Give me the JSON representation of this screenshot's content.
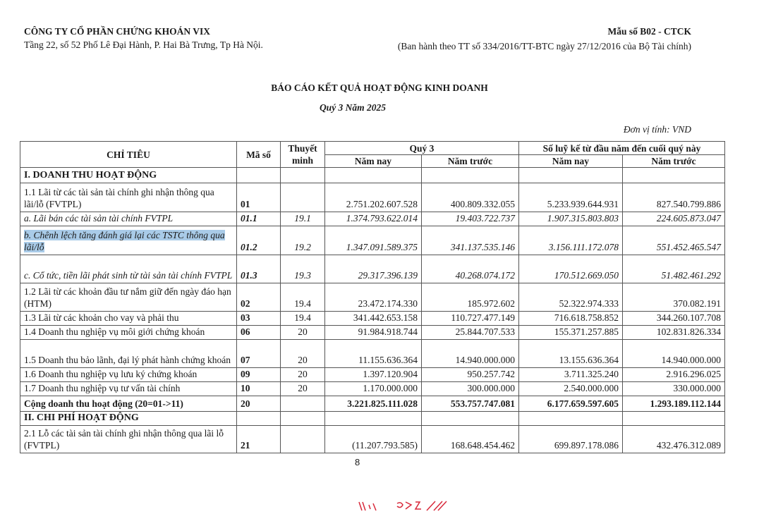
{
  "header": {
    "company": "CÔNG TY CỔ PHẦN CHỨNG KHOÁN VIX",
    "address": "Tầng 22, số 52 Phố Lê Đại Hành, P. Hai Bà Trưng, Tp Hà Nội.",
    "form_no": "Mẫu số B02 - CTCK",
    "issued_by": "(Ban hành theo TT số 334/2016/TT-BTC ngày 27/12/2016 của Bộ Tài chính)"
  },
  "report": {
    "title": "BÁO CÁO KẾT QUẢ HOẠT ĐỘNG KINH DOANH",
    "period": "Quý 3 Năm 2025",
    "unit": "Đơn vị tính: VND"
  },
  "table": {
    "headers": {
      "item": "CHỈ TIÊU",
      "code": "Mã số",
      "note": "Thuyết minh",
      "quarter": "Quý 3",
      "ytd": "Số luỹ kế từ đầu năm đến cuối quý này",
      "this_year": "Năm nay",
      "last_year": "Năm trước"
    },
    "rows": [
      {
        "item": "I. DOANH THU HOẠT ĐỘNG",
        "code": "",
        "note": "",
        "q_this": "",
        "q_last": "",
        "ytd_this": "",
        "ytd_last": ""
      },
      {
        "item": "1.1 Lãi từ các tài sản tài chính ghi nhận thông qua lãi/lỗ (FVTPL)",
        "code": "01",
        "note": "",
        "q_this": "2.751.202.607.528",
        "q_last": "400.809.332.055",
        "ytd_this": "5.233.939.644.931",
        "ytd_last": "827.540.799.886"
      },
      {
        "item": "a. Lãi bán các tài sản tài chính FVTPL",
        "code": "01.1",
        "note": "19.1",
        "q_this": "1.374.793.622.014",
        "q_last": "19.403.722.737",
        "ytd_this": "1.907.315.803.803",
        "ytd_last": "224.605.873.047"
      },
      {
        "item": "b. Chênh lệch tăng đánh giá lại các TSTC thông qua lãi/lỗ",
        "code": "01.2",
        "note": "19.2",
        "q_this": "1.347.091.589.375",
        "q_last": "341.137.535.146",
        "ytd_this": "3.156.111.172.078",
        "ytd_last": "551.452.465.547"
      },
      {
        "item": "c. Cổ tức, tiền lãi phát sinh từ tài sản tài chính FVTPL",
        "code": "01.3",
        "note": "19.3",
        "q_this": "29.317.396.139",
        "q_last": "40.268.074.172",
        "ytd_this": "170.512.669.050",
        "ytd_last": "51.482.461.292"
      },
      {
        "item": "1.2 Lãi từ các khoản đầu tư nắm giữ đến ngày đáo hạn (HTM)",
        "code": "02",
        "note": "19.4",
        "q_this": "23.472.174.330",
        "q_last": "185.972.602",
        "ytd_this": "52.322.974.333",
        "ytd_last": "370.082.191"
      },
      {
        "item": "1.3 Lãi từ các khoản cho vay và phải thu",
        "code": "03",
        "note": "19.4",
        "q_this": "341.442.653.158",
        "q_last": "110.727.477.149",
        "ytd_this": "716.618.758.852",
        "ytd_last": "344.260.107.708"
      },
      {
        "item": "1.4 Doanh thu nghiệp vụ môi giới chứng khoán",
        "code": "06",
        "note": "20",
        "q_this": "91.984.918.744",
        "q_last": "25.844.707.533",
        "ytd_this": "155.371.257.885",
        "ytd_last": "102.831.826.334"
      },
      {
        "item": "1.5 Doanh thu bảo lãnh, đại lý phát hành chứng khoán",
        "code": "07",
        "note": "20",
        "q_this": "11.155.636.364",
        "q_last": "14.940.000.000",
        "ytd_this": "13.155.636.364",
        "ytd_last": "14.940.000.000"
      },
      {
        "item": "1.6 Doanh thu nghiệp vụ lưu ký chứng khoán",
        "code": "09",
        "note": "20",
        "q_this": "1.397.120.904",
        "q_last": "950.257.742",
        "ytd_this": "3.711.325.240",
        "ytd_last": "2.916.296.025"
      },
      {
        "item": "1.7 Doanh thu nghiệp vụ tư vấn tài chính",
        "code": "10",
        "note": "20",
        "q_this": "1.170.000.000",
        "q_last": "300.000.000",
        "ytd_this": "2.540.000.000",
        "ytd_last": "330.000.000"
      },
      {
        "item": "Cộng doanh thu hoạt động (20=01->11)",
        "code": "20",
        "note": "",
        "q_this": "3.221.825.111.028",
        "q_last": "553.757.747.081",
        "ytd_this": "6.177.659.597.605",
        "ytd_last": "1.293.189.112.144"
      },
      {
        "item": "II. CHI PHÍ HOẠT ĐỘNG",
        "code": "",
        "note": "",
        "q_this": "",
        "q_last": "",
        "ytd_this": "",
        "ytd_last": ""
      },
      {
        "item": "2.1 Lỗ các tài sản tài chính ghi nhận thông qua lãi lỗ (FVTPL)",
        "code": "21",
        "note": "",
        "q_this": "(11.207.793.585)",
        "q_last": "168.648.454.462",
        "ytd_this": "699.897.178.086",
        "ytd_last": "432.476.312.089"
      }
    ]
  },
  "footer": {
    "page_number": "8",
    "stamp_color": "#d8283a"
  }
}
